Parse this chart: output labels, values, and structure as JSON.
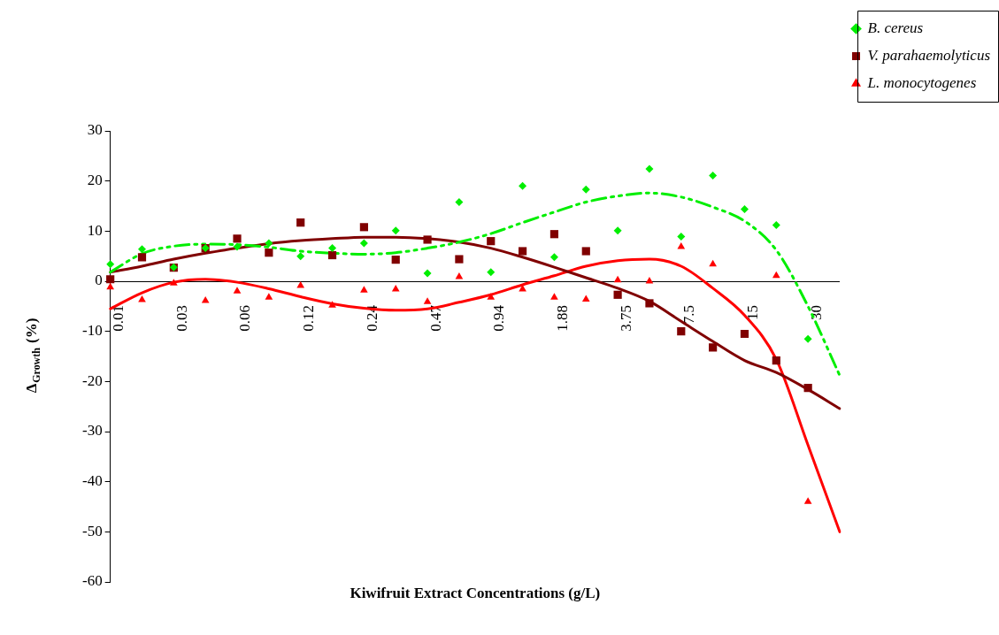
{
  "chart_data": {
    "type": "scatter",
    "xlabel": "Kiwifruit Extract Concentrations (g/L)",
    "ylabel": "Δ$_{Growth}$ (%)",
    "categories": [
      "0.01",
      null,
      "0.03",
      null,
      "0.06",
      null,
      "0.12",
      null,
      "0.24",
      null,
      "0.47",
      null,
      "0.94",
      null,
      "1.88",
      null,
      "3.75",
      null,
      "7.5",
      null,
      "15",
      null,
      "30",
      null
    ],
    "ylim": [
      -60,
      30
    ],
    "yticks": [
      -60,
      -50,
      -40,
      -30,
      -20,
      -10,
      0,
      10,
      20,
      30
    ],
    "grid": false,
    "legend": "top right",
    "series": [
      {
        "name": "B. cereus",
        "color": "#00ee00",
        "marker": "diamond",
        "values": [
          3.4,
          6.4,
          2.8,
          6.6,
          6.9,
          7.6,
          5.0,
          6.6,
          7.6,
          10.1,
          1.6,
          15.8,
          1.8,
          19.0,
          4.8,
          18.3,
          10.1,
          22.4,
          8.9,
          21.1,
          14.4,
          11.2,
          -11.5,
          null
        ]
      },
      {
        "name": "V. parahaemolyticus",
        "color": "#800000",
        "marker": "square",
        "values": [
          0.4,
          4.8,
          2.7,
          6.6,
          8.5,
          5.7,
          11.7,
          5.2,
          10.8,
          4.3,
          8.3,
          4.4,
          8.0,
          6.0,
          9.4,
          6.0,
          -2.7,
          -4.4,
          -10.0,
          -13.2,
          -10.5,
          -15.8,
          -21.3,
          null
        ]
      },
      {
        "name": "L. monocytogenes",
        "color": "#ff0000",
        "marker": "triangle",
        "values": [
          -1.2,
          -3.7,
          -0.4,
          -3.9,
          -2.0,
          -3.2,
          -0.9,
          -4.8,
          -1.8,
          -1.6,
          -4.1,
          0.9,
          -3.2,
          -1.6,
          -3.2,
          -3.6,
          0.2,
          0.0,
          6.9,
          3.4,
          null,
          1.1,
          -44.0,
          null
        ]
      },
      {
        "type": "line",
        "color": "#00ee00",
        "line_style": "dashed",
        "values": [
          1.8,
          5.5,
          7.0,
          7.4,
          7.3,
          6.8,
          6.0,
          5.6,
          5.4,
          5.7,
          6.6,
          7.8,
          9.5,
          11.7,
          13.8,
          15.8,
          17.0,
          17.6,
          16.8,
          14.8,
          12.0,
          6.2,
          -5.0,
          -18.8
        ]
      },
      {
        "type": "line",
        "color": "#800000",
        "line_style": "solid",
        "values": [
          1.8,
          3.0,
          4.4,
          5.6,
          6.6,
          7.5,
          8.1,
          8.5,
          8.8,
          8.8,
          8.5,
          7.8,
          6.6,
          4.8,
          2.8,
          0.7,
          -1.4,
          -4.0,
          -8.0,
          -12.0,
          -15.8,
          -18.2,
          -21.6,
          -25.4
        ]
      },
      {
        "type": "line",
        "color": "#ff0000",
        "line_style": "solid",
        "values": [
          -5.5,
          -2.3,
          -0.2,
          0.4,
          -0.2,
          -1.5,
          -3.1,
          -4.5,
          -5.4,
          -5.8,
          -5.5,
          -4.2,
          -2.7,
          -0.7,
          1.1,
          3.0,
          4.1,
          4.4,
          3.0,
          -1.4,
          -6.8,
          -15.6,
          -32.7,
          -50.0
        ]
      }
    ]
  }
}
